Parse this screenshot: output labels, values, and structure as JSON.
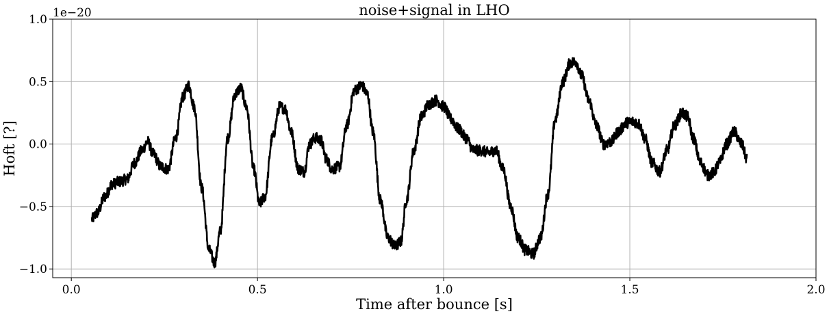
{
  "chart_data": {
    "type": "line",
    "title": "noise+signal in LHO",
    "xlabel": "Time after bounce [s]",
    "ylabel": "Hoft [?]",
    "y_offset_text": "1e−20",
    "y_scale": 1e-20,
    "xlim": [
      -0.05,
      2.0
    ],
    "ylim": [
      -1.07,
      1.0
    ],
    "xticks": [
      0.0,
      0.5,
      1.0,
      1.5,
      2.0
    ],
    "xtick_labels": [
      "0.0",
      "0.5",
      "1.0",
      "1.5",
      "2.0"
    ],
    "yticks": [
      -1.0,
      -0.5,
      0.0,
      0.5,
      1.0
    ],
    "ytick_labels": [
      "−1.0",
      "−0.5",
      "0.0",
      "0.5",
      "1.0"
    ],
    "grid": true,
    "legend": "none",
    "line_color": "#000000",
    "noise_amplitude": 0.045,
    "series": [
      {
        "x": [
          0.055,
          0.07,
          0.09,
          0.11,
          0.13,
          0.15,
          0.17,
          0.19,
          0.205,
          0.22,
          0.24,
          0.26,
          0.28,
          0.3,
          0.315,
          0.33,
          0.35,
          0.37,
          0.385,
          0.4,
          0.42,
          0.44,
          0.455,
          0.47,
          0.49,
          0.505,
          0.52,
          0.54,
          0.56,
          0.575,
          0.59,
          0.61,
          0.625,
          0.64,
          0.655,
          0.67,
          0.685,
          0.7,
          0.72,
          0.74,
          0.76,
          0.78,
          0.795,
          0.81,
          0.83,
          0.85,
          0.87,
          0.885,
          0.9,
          0.92,
          0.94,
          0.96,
          0.98,
          1.0,
          1.02,
          1.04,
          1.06,
          1.08,
          1.1,
          1.12,
          1.14,
          1.16,
          1.18,
          1.2,
          1.22,
          1.24,
          1.26,
          1.28,
          1.3,
          1.32,
          1.34,
          1.355,
          1.37,
          1.39,
          1.41,
          1.43,
          1.45,
          1.47,
          1.49,
          1.51,
          1.525,
          1.54,
          1.56,
          1.58,
          1.6,
          1.62,
          1.64,
          1.655,
          1.67,
          1.69,
          1.71,
          1.725,
          1.74,
          1.76,
          1.78,
          1.8,
          1.815
        ],
        "y": [
          -0.6,
          -0.55,
          -0.42,
          -0.32,
          -0.3,
          -0.28,
          -0.15,
          -0.05,
          0.02,
          -0.08,
          -0.18,
          -0.2,
          0.05,
          0.38,
          0.47,
          0.3,
          -0.35,
          -0.85,
          -0.95,
          -0.7,
          0.05,
          0.4,
          0.45,
          0.3,
          -0.2,
          -0.48,
          -0.42,
          0.05,
          0.3,
          0.28,
          0.1,
          -0.2,
          -0.22,
          0.0,
          0.05,
          0.03,
          -0.12,
          -0.2,
          -0.18,
          0.15,
          0.43,
          0.47,
          0.4,
          0.1,
          -0.45,
          -0.75,
          -0.82,
          -0.78,
          -0.45,
          -0.05,
          0.22,
          0.32,
          0.35,
          0.3,
          0.2,
          0.12,
          0.05,
          -0.05,
          -0.05,
          -0.07,
          -0.05,
          -0.2,
          -0.5,
          -0.75,
          -0.85,
          -0.88,
          -0.75,
          -0.4,
          0.2,
          0.5,
          0.65,
          0.66,
          0.55,
          0.35,
          0.15,
          0.0,
          0.02,
          0.1,
          0.17,
          0.18,
          0.16,
          0.05,
          -0.15,
          -0.22,
          -0.05,
          0.15,
          0.25,
          0.22,
          0.05,
          -0.15,
          -0.25,
          -0.23,
          -0.15,
          0.0,
          0.1,
          0.0,
          -0.12
        ]
      }
    ]
  }
}
